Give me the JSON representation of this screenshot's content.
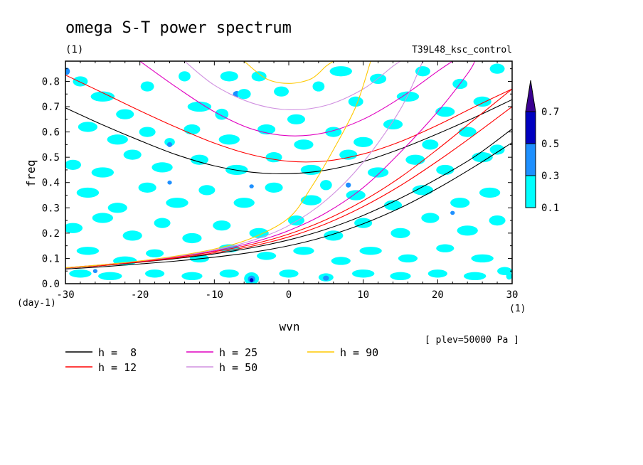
{
  "chart_data": {
    "type": "contour",
    "title": "omega S-T power spectrum",
    "title_unit": "(1)",
    "run_label": "T39L48_ksc_control",
    "xlabel": "wvn",
    "x_unit": "(1)",
    "ylabel": "freq",
    "y_unit": "(day-1)",
    "level_note": "[ plev=50000 Pa ]",
    "xlim": [
      -30,
      30
    ],
    "ylim": [
      0.0,
      0.88
    ],
    "x_ticks": [
      "-30",
      "-20",
      "-10",
      "0",
      "10",
      "20",
      "30"
    ],
    "y_ticks": [
      "0.0",
      "0.1",
      "0.2",
      "0.3",
      "0.4",
      "0.5",
      "0.6",
      "0.7",
      "0.8"
    ],
    "colorbar": {
      "levels": [
        "0.1",
        "0.3",
        "0.5",
        "0.7"
      ],
      "colors": [
        "#00ffff",
        "#1e90ff",
        "#0000c0",
        "#3a0090"
      ]
    },
    "legend": [
      {
        "label": "h =  8",
        "color": "#000000"
      },
      {
        "label": "h = 12",
        "color": "#ff0000"
      },
      {
        "label": "h = 25",
        "color": "#e000c0"
      },
      {
        "label": "h = 50",
        "color": "#d090e0"
      },
      {
        "label": "h = 90",
        "color": "#ffc800"
      }
    ],
    "dispersion_curves": [
      {
        "name": "h = 8",
        "color": "#000000",
        "points": [
          [
            -30,
            0.695
          ],
          [
            -25,
            0.628
          ],
          [
            -20,
            0.566
          ],
          [
            -15,
            0.509
          ],
          [
            -10,
            0.466
          ],
          [
            -5,
            0.441
          ],
          [
            0,
            0.435
          ],
          [
            5,
            0.449
          ],
          [
            10,
            0.483
          ],
          [
            15,
            0.533
          ],
          [
            20,
            0.593
          ],
          [
            25,
            0.658
          ],
          [
            30,
            0.728
          ]
        ]
      },
      {
        "name": "h = 8",
        "color": "#000000",
        "points": [
          [
            -30,
            0.058
          ],
          [
            -25,
            0.067
          ],
          [
            -20,
            0.078
          ],
          [
            -15,
            0.09
          ],
          [
            -10,
            0.105
          ],
          [
            -5,
            0.124
          ],
          [
            0,
            0.15
          ],
          [
            5,
            0.187
          ],
          [
            10,
            0.237
          ],
          [
            15,
            0.3
          ],
          [
            20,
            0.377
          ],
          [
            25,
            0.464
          ],
          [
            30,
            0.558
          ]
        ]
      },
      {
        "name": "h = 8",
        "color": "#000000",
        "points": [
          [
            -30,
            0.062
          ],
          [
            -25,
            0.072
          ],
          [
            -20,
            0.085
          ],
          [
            -15,
            0.1
          ],
          [
            -10,
            0.118
          ],
          [
            -5,
            0.142
          ],
          [
            0,
            0.173
          ],
          [
            5,
            0.215
          ],
          [
            10,
            0.27
          ],
          [
            15,
            0.338
          ],
          [
            20,
            0.416
          ],
          [
            25,
            0.503
          ],
          [
            30,
            0.612
          ]
        ]
      },
      {
        "name": "h = 12",
        "color": "#ff0000",
        "points": [
          [
            -30,
            0.825
          ],
          [
            -25,
            0.755
          ],
          [
            -20,
            0.684
          ],
          [
            -15,
            0.617
          ],
          [
            -10,
            0.556
          ],
          [
            -5,
            0.51
          ],
          [
            0,
            0.484
          ],
          [
            5,
            0.485
          ],
          [
            10,
            0.513
          ],
          [
            15,
            0.562
          ],
          [
            20,
            0.627
          ],
          [
            25,
            0.7
          ],
          [
            30,
            0.77
          ]
        ]
      },
      {
        "name": "h = 12",
        "color": "#ff0000",
        "points": [
          [
            -30,
            0.062
          ],
          [
            -25,
            0.072
          ],
          [
            -20,
            0.086
          ],
          [
            -15,
            0.102
          ],
          [
            -10,
            0.122
          ],
          [
            -5,
            0.148
          ],
          [
            0,
            0.185
          ],
          [
            5,
            0.237
          ],
          [
            10,
            0.305
          ],
          [
            15,
            0.388
          ],
          [
            20,
            0.485
          ],
          [
            25,
            0.59
          ],
          [
            30,
            0.7
          ]
        ]
      },
      {
        "name": "h = 12",
        "color": "#ff0000",
        "points": [
          [
            -30,
            0.063
          ],
          [
            -25,
            0.074
          ],
          [
            -20,
            0.088
          ],
          [
            -15,
            0.105
          ],
          [
            -10,
            0.127
          ],
          [
            -5,
            0.155
          ],
          [
            0,
            0.196
          ],
          [
            5,
            0.253
          ],
          [
            10,
            0.328
          ],
          [
            15,
            0.421
          ],
          [
            20,
            0.532
          ],
          [
            25,
            0.651
          ],
          [
            30,
            0.77
          ]
        ]
      },
      {
        "name": "h = 25",
        "color": "#e000c0",
        "points": [
          [
            -20,
            0.88
          ],
          [
            -15,
            0.775
          ],
          [
            -10,
            0.68
          ],
          [
            -5,
            0.612
          ],
          [
            0,
            0.585
          ],
          [
            5,
            0.598
          ],
          [
            10,
            0.65
          ],
          [
            15,
            0.735
          ],
          [
            20,
            0.84
          ],
          [
            22,
            0.88
          ]
        ]
      },
      {
        "name": "h = 25",
        "color": "#e000c0",
        "points": [
          [
            -30,
            0.063
          ],
          [
            -25,
            0.075
          ],
          [
            -20,
            0.089
          ],
          [
            -15,
            0.107
          ],
          [
            -10,
            0.13
          ],
          [
            -5,
            0.162
          ],
          [
            0,
            0.21
          ],
          [
            5,
            0.28
          ],
          [
            10,
            0.38
          ],
          [
            15,
            0.52
          ],
          [
            20,
            0.68
          ],
          [
            24,
            0.83
          ],
          [
            25,
            0.88
          ]
        ]
      },
      {
        "name": "h = 50",
        "color": "#d090e0",
        "points": [
          [
            -14,
            0.88
          ],
          [
            -10,
            0.785
          ],
          [
            -5,
            0.715
          ],
          [
            0,
            0.688
          ],
          [
            5,
            0.705
          ],
          [
            10,
            0.77
          ],
          [
            14,
            0.86
          ],
          [
            15,
            0.88
          ]
        ]
      },
      {
        "name": "h = 50",
        "color": "#d090e0",
        "points": [
          [
            -30,
            0.063
          ],
          [
            -25,
            0.075
          ],
          [
            -20,
            0.09
          ],
          [
            -15,
            0.108
          ],
          [
            -10,
            0.133
          ],
          [
            -5,
            0.17
          ],
          [
            0,
            0.23
          ],
          [
            5,
            0.33
          ],
          [
            10,
            0.48
          ],
          [
            15,
            0.69
          ],
          [
            18,
            0.88
          ]
        ]
      },
      {
        "name": "h = 90",
        "color": "#ffc800",
        "points": [
          [
            -6,
            0.88
          ],
          [
            -3,
            0.81
          ],
          [
            0,
            0.792
          ],
          [
            3,
            0.81
          ],
          [
            5,
            0.86
          ],
          [
            6,
            0.88
          ]
        ]
      },
      {
        "name": "h = 90",
        "color": "#ffc800",
        "points": [
          [
            -30,
            0.063
          ],
          [
            -25,
            0.075
          ],
          [
            -20,
            0.09
          ],
          [
            -15,
            0.11
          ],
          [
            -10,
            0.137
          ],
          [
            -5,
            0.18
          ],
          [
            0,
            0.26
          ],
          [
            3,
            0.38
          ],
          [
            6,
            0.53
          ],
          [
            9,
            0.7
          ],
          [
            11,
            0.88
          ]
        ]
      }
    ],
    "contour_blobs": [
      [
        -29.8,
        0.84,
        0.4,
        0.014,
        2
      ],
      [
        -28,
        0.8,
        1.0,
        0.02,
        1
      ],
      [
        -25,
        0.74,
        1.6,
        0.02,
        1
      ],
      [
        -22,
        0.67,
        1.2,
        0.02,
        1
      ],
      [
        -19,
        0.78,
        0.9,
        0.02,
        1
      ],
      [
        -14,
        0.82,
        0.8,
        0.02,
        1
      ],
      [
        -12,
        0.7,
        1.6,
        0.02,
        1
      ],
      [
        -8,
        0.82,
        1.2,
        0.02,
        1
      ],
      [
        -7,
        0.75,
        0.5,
        0.012,
        2
      ],
      [
        -6,
        0.75,
        0.9,
        0.02,
        1
      ],
      [
        -4,
        0.82,
        1.0,
        0.02,
        1
      ],
      [
        -1,
        0.76,
        1.0,
        0.02,
        1
      ],
      [
        1,
        0.65,
        1.2,
        0.02,
        1
      ],
      [
        4,
        0.78,
        0.8,
        0.02,
        1
      ],
      [
        7,
        0.84,
        1.5,
        0.02,
        1
      ],
      [
        9,
        0.72,
        1.0,
        0.02,
        1
      ],
      [
        12,
        0.81,
        1.1,
        0.02,
        1
      ],
      [
        16,
        0.74,
        1.5,
        0.02,
        1
      ],
      [
        18,
        0.84,
        1.0,
        0.02,
        1
      ],
      [
        21,
        0.68,
        1.3,
        0.02,
        1
      ],
      [
        23,
        0.79,
        1.0,
        0.02,
        1
      ],
      [
        26,
        0.72,
        1.2,
        0.02,
        1
      ],
      [
        28,
        0.85,
        1.0,
        0.02,
        1
      ],
      [
        -9,
        0.67,
        0.4,
        0.012,
        2
      ],
      [
        -9,
        0.67,
        0.9,
        0.022,
        1
      ],
      [
        -27,
        0.62,
        1.3,
        0.02,
        1
      ],
      [
        -23,
        0.57,
        1.4,
        0.02,
        1
      ],
      [
        -19,
        0.6,
        1.1,
        0.02,
        1
      ],
      [
        -16,
        0.56,
        0.7,
        0.016,
        1
      ],
      [
        -13,
        0.61,
        1.1,
        0.02,
        1
      ],
      [
        -8,
        0.57,
        1.4,
        0.02,
        1
      ],
      [
        -3,
        0.61,
        1.2,
        0.02,
        1
      ],
      [
        2,
        0.55,
        1.3,
        0.02,
        1
      ],
      [
        6,
        0.6,
        1.1,
        0.02,
        1
      ],
      [
        10,
        0.56,
        1.3,
        0.02,
        1
      ],
      [
        14,
        0.63,
        1.3,
        0.02,
        1
      ],
      [
        19,
        0.55,
        1.1,
        0.02,
        1
      ],
      [
        24,
        0.6,
        1.2,
        0.02,
        1
      ],
      [
        28,
        0.53,
        1.0,
        0.02,
        1
      ],
      [
        -29,
        0.47,
        1.1,
        0.02,
        1
      ],
      [
        -25,
        0.44,
        1.5,
        0.02,
        1
      ],
      [
        -21,
        0.51,
        1.2,
        0.02,
        1
      ],
      [
        -17,
        0.46,
        1.4,
        0.02,
        1
      ],
      [
        -12,
        0.49,
        1.2,
        0.02,
        1
      ],
      [
        -7,
        0.45,
        1.5,
        0.02,
        1
      ],
      [
        -2,
        0.5,
        1.1,
        0.02,
        1
      ],
      [
        3,
        0.45,
        1.4,
        0.02,
        1
      ],
      [
        8,
        0.51,
        1.2,
        0.02,
        1
      ],
      [
        12,
        0.44,
        1.4,
        0.02,
        1
      ],
      [
        17,
        0.49,
        1.3,
        0.02,
        1
      ],
      [
        21,
        0.45,
        1.2,
        0.02,
        1
      ],
      [
        26,
        0.5,
        1.4,
        0.02,
        1
      ],
      [
        -27,
        0.36,
        1.5,
        0.02,
        1
      ],
      [
        -23,
        0.3,
        1.3,
        0.02,
        1
      ],
      [
        -19,
        0.38,
        1.2,
        0.02,
        1
      ],
      [
        -15,
        0.32,
        1.5,
        0.02,
        1
      ],
      [
        -11,
        0.37,
        1.1,
        0.02,
        1
      ],
      [
        -6,
        0.32,
        1.4,
        0.02,
        1
      ],
      [
        -2,
        0.38,
        1.2,
        0.02,
        1
      ],
      [
        3,
        0.33,
        1.4,
        0.02,
        1
      ],
      [
        5,
        0.39,
        0.8,
        0.02,
        1
      ],
      [
        9,
        0.35,
        1.3,
        0.02,
        1
      ],
      [
        14,
        0.31,
        1.2,
        0.02,
        1
      ],
      [
        18,
        0.37,
        1.4,
        0.02,
        1
      ],
      [
        23,
        0.32,
        1.3,
        0.02,
        1
      ],
      [
        27,
        0.36,
        1.4,
        0.02,
        1
      ],
      [
        -29,
        0.22,
        1.3,
        0.02,
        1
      ],
      [
        -25,
        0.26,
        1.4,
        0.02,
        1
      ],
      [
        -21,
        0.19,
        1.3,
        0.02,
        1
      ],
      [
        -17,
        0.24,
        1.1,
        0.02,
        1
      ],
      [
        -13,
        0.18,
        1.3,
        0.02,
        1
      ],
      [
        -9,
        0.23,
        1.2,
        0.02,
        1
      ],
      [
        -4,
        0.2,
        1.3,
        0.02,
        1
      ],
      [
        1,
        0.25,
        1.1,
        0.02,
        1
      ],
      [
        6,
        0.19,
        1.3,
        0.02,
        1
      ],
      [
        10,
        0.24,
        1.2,
        0.02,
        1
      ],
      [
        15,
        0.2,
        1.3,
        0.02,
        1
      ],
      [
        19,
        0.26,
        1.2,
        0.02,
        1
      ],
      [
        24,
        0.21,
        1.4,
        0.02,
        1
      ],
      [
        28,
        0.25,
        1.1,
        0.02,
        1
      ],
      [
        -27,
        0.13,
        1.5,
        0.016,
        1
      ],
      [
        -22,
        0.09,
        1.6,
        0.018,
        1
      ],
      [
        -18,
        0.12,
        1.2,
        0.016,
        1
      ],
      [
        -12,
        0.1,
        1.3,
        0.016,
        1
      ],
      [
        -8,
        0.14,
        1.4,
        0.016,
        1
      ],
      [
        -3,
        0.11,
        1.3,
        0.016,
        1
      ],
      [
        2,
        0.13,
        1.4,
        0.016,
        1
      ],
      [
        7,
        0.09,
        1.3,
        0.016,
        1
      ],
      [
        11,
        0.13,
        1.5,
        0.016,
        1
      ],
      [
        16,
        0.1,
        1.3,
        0.016,
        1
      ],
      [
        21,
        0.14,
        1.2,
        0.016,
        1
      ],
      [
        26,
        0.1,
        1.5,
        0.016,
        1
      ],
      [
        -28,
        0.04,
        1.5,
        0.016,
        1
      ],
      [
        -24,
        0.03,
        1.6,
        0.016,
        1
      ],
      [
        -18,
        0.04,
        1.3,
        0.016,
        1
      ],
      [
        -13,
        0.03,
        1.4,
        0.016,
        1
      ],
      [
        -8,
        0.04,
        1.3,
        0.016,
        1
      ],
      [
        -5,
        0.02,
        1.0,
        0.025,
        1
      ],
      [
        -5,
        0.018,
        0.5,
        0.014,
        2
      ],
      [
        -5,
        0.014,
        0.25,
        0.008,
        3
      ],
      [
        0,
        0.04,
        1.3,
        0.016,
        1
      ],
      [
        5,
        0.025,
        1.0,
        0.016,
        1
      ],
      [
        5,
        0.022,
        0.4,
        0.01,
        2
      ],
      [
        10,
        0.04,
        1.5,
        0.016,
        1
      ],
      [
        15,
        0.03,
        1.4,
        0.016,
        1
      ],
      [
        20,
        0.04,
        1.3,
        0.016,
        1
      ],
      [
        25,
        0.03,
        1.5,
        0.016,
        1
      ],
      [
        29,
        0.05,
        1.0,
        0.016,
        1
      ],
      [
        29.6,
        0.03,
        0.4,
        0.014,
        1
      ],
      [
        -16,
        0.55,
        0.35,
        0.01,
        2
      ],
      [
        -5,
        0.385,
        0.3,
        0.008,
        2
      ],
      [
        -16,
        0.4,
        0.3,
        0.008,
        2
      ],
      [
        8,
        0.39,
        0.35,
        0.01,
        2
      ],
      [
        22,
        0.28,
        0.3,
        0.008,
        2
      ],
      [
        -26,
        0.05,
        0.3,
        0.008,
        2
      ]
    ]
  }
}
